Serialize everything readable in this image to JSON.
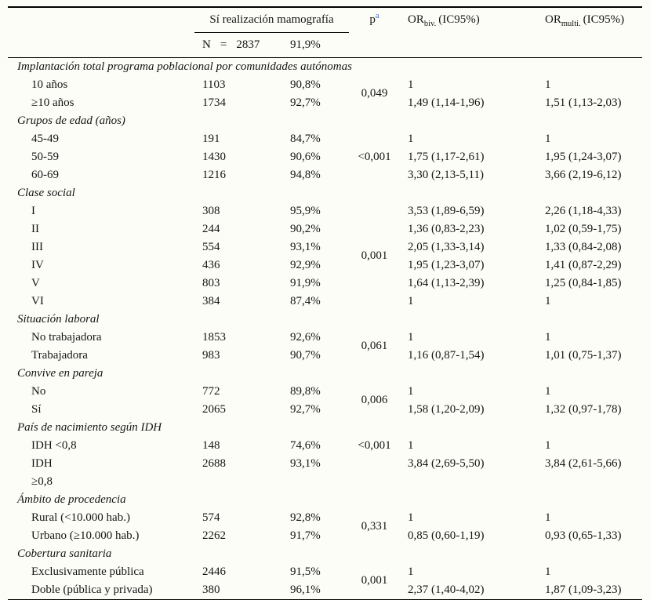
{
  "page": {
    "background": "#fdfdf8",
    "ink_color": "#141414",
    "footnote_color": "#3565c0"
  },
  "table": {
    "header": {
      "group_label": "Sí realización mamografía",
      "p_label": "p",
      "p_footnote": "a",
      "or_label": "OR",
      "biv_sub": "biv.",
      "multi_sub": "multi.",
      "ic_label": "(IC95%)",
      "n_label": "N",
      "equals_sign": "=",
      "n_total": "2837",
      "pct_total": "91,9%"
    },
    "sections": [
      {
        "title": "Implantación total programa poblacional por comunidades autónomas",
        "p": "0,049",
        "p_align": "middle",
        "rows": [
          {
            "label": "10 años",
            "n": "1103",
            "pct": "90,8%",
            "or_biv": "1",
            "or_multi": "1"
          },
          {
            "label": "≥10 años",
            "n": "1734",
            "pct": "92,7%",
            "or_biv": "1,49 (1,14-1,96)",
            "or_multi": "1,51 (1,13-2,03)"
          }
        ]
      },
      {
        "title": "Grupos de edad (años)",
        "p": "<0,001",
        "p_align": "middle",
        "rows": [
          {
            "label": "45-49",
            "n": "191",
            "pct": "84,7%",
            "or_biv": "1",
            "or_multi": "1"
          },
          {
            "label": "50-59",
            "n": "1430",
            "pct": "90,6%",
            "or_biv": "1,75 (1,17-2,61)",
            "or_multi": "1,95 (1,24-3,07)"
          },
          {
            "label": "60-69",
            "n": "1216",
            "pct": "94,8%",
            "or_biv": "3,30 (2,13-5,11)",
            "or_multi": "3,66 (2,19-6,12)"
          }
        ]
      },
      {
        "title": "Clase social",
        "p": "0,001",
        "p_align": "middle",
        "rows": [
          {
            "label": "I",
            "n": "308",
            "pct": "95,9%",
            "or_biv": "3,53 (1,89-6,59)",
            "or_multi": "2,26 (1,18-4,33)"
          },
          {
            "label": "II",
            "n": "244",
            "pct": "90,2%",
            "or_biv": "1,36 (0,83-2,23)",
            "or_multi": "1,02 (0,59-1,75)"
          },
          {
            "label": "III",
            "n": "554",
            "pct": "93,1%",
            "or_biv": "2,05 (1,33-3,14)",
            "or_multi": "1,33 (0,84-2,08)"
          },
          {
            "label": "IV",
            "n": "436",
            "pct": "92,9%",
            "or_biv": "1,95 (1,23-3,07)",
            "or_multi": "1,41 (0,87-2,29)"
          },
          {
            "label": "V",
            "n": "803",
            "pct": "91,9%",
            "or_biv": "1,64 (1,13-2,39)",
            "or_multi": "1,25 (0,84-1,85)"
          },
          {
            "label": "VI",
            "n": "384",
            "pct": "87,4%",
            "or_biv": "1",
            "or_multi": "1"
          }
        ]
      },
      {
        "title": "Situación laboral",
        "p": "0,061",
        "p_align": "middle",
        "rows": [
          {
            "label": "No trabajadora",
            "n": "1853",
            "pct": "92,6%",
            "or_biv": "1",
            "or_multi": "1"
          },
          {
            "label": "Trabajadora",
            "n": "983",
            "pct": "90,7%",
            "or_biv": "1,16 (0,87-1,54)",
            "or_multi": "1,01 (0,75-1,37)"
          }
        ]
      },
      {
        "title": "Convive en pareja",
        "p": "0,006",
        "p_align": "middle",
        "rows": [
          {
            "label": "No",
            "n": "772",
            "pct": "89,8%",
            "or_biv": "1",
            "or_multi": "1"
          },
          {
            "label": "Sí",
            "n": "2065",
            "pct": "92,7%",
            "or_biv": "1,58 (1,20-2,09)",
            "or_multi": "1,32 (0,97-1,78)"
          }
        ]
      },
      {
        "title": "País de nacimiento según IDH",
        "p": "<0,001",
        "p_align": "top",
        "rows": [
          {
            "label": "IDH <0,8",
            "n": "148",
            "pct": "74,6%",
            "or_biv": "1",
            "or_multi": "1"
          },
          {
            "label": "IDH\n≥0,8",
            "n": "2688",
            "pct": "93,1%",
            "or_biv": "3,84 (2,69-5,50)",
            "or_multi": "3,84 (2,61-5,66)"
          }
        ]
      },
      {
        "title": "Ámbito de procedencia",
        "p": "0,331",
        "p_align": "middle",
        "rows": [
          {
            "label": "Rural (<10.000 hab.)",
            "n": "574",
            "pct": "92,8%",
            "or_biv": "1",
            "or_multi": "1"
          },
          {
            "label": "Urbano (≥10.000 hab.)",
            "n": "2262",
            "pct": "91,7%",
            "or_biv": "0,85 (0,60-1,19)",
            "or_multi": "0,93 (0,65-1,33)"
          }
        ]
      },
      {
        "title": "Cobertura sanitaria",
        "p": "0,001",
        "p_align": "middle",
        "rows": [
          {
            "label": "Exclusivamente pública",
            "n": "2446",
            "pct": "91,5%",
            "or_biv": "1",
            "or_multi": "1"
          },
          {
            "label": "Doble (pública y privada)",
            "n": "380",
            "pct": "96,1%",
            "or_biv": "2,37 (1,40-4,02)",
            "or_multi": "1,87 (1,09-3,23)"
          }
        ]
      }
    ]
  }
}
